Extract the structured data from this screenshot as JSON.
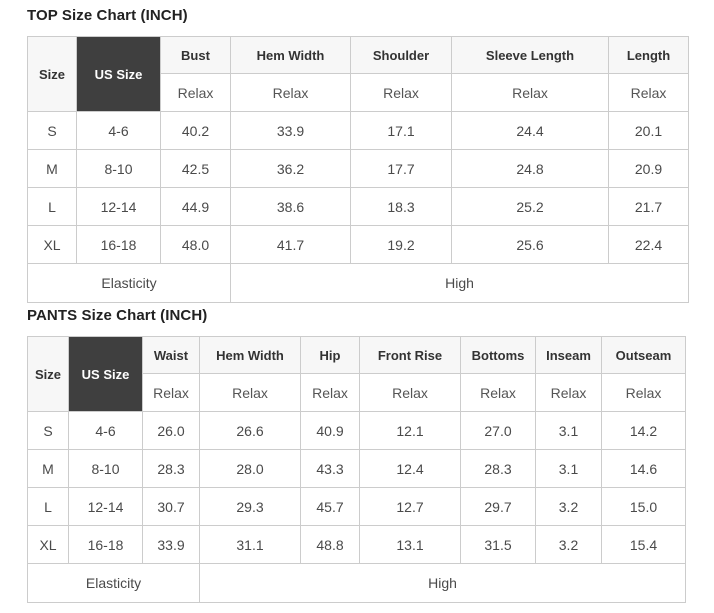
{
  "colors": {
    "dark_header_bg": "#3f3f3f",
    "dark_header_text": "#ffffff",
    "light_header_bg": "#f7f7f7",
    "border": "#cccccc",
    "body_text": "#4a4a4a",
    "title_text": "#222222"
  },
  "top_chart": {
    "title": "TOP Size Chart (INCH)",
    "size_header": "Size",
    "us_size_header": "US Size",
    "columns": [
      "Bust",
      "Hem Width",
      "Shoulder",
      "Sleeve Length",
      "Length"
    ],
    "fit_labels": [
      "Relax",
      "Relax",
      "Relax",
      "Relax",
      "Relax"
    ],
    "rows": [
      {
        "size": "S",
        "us_size": "4-6",
        "values": [
          "40.2",
          "33.9",
          "17.1",
          "24.4",
          "20.1"
        ]
      },
      {
        "size": "M",
        "us_size": "8-10",
        "values": [
          "42.5",
          "36.2",
          "17.7",
          "24.8",
          "20.9"
        ]
      },
      {
        "size": "L",
        "us_size": "12-14",
        "values": [
          "44.9",
          "38.6",
          "18.3",
          "25.2",
          "21.7"
        ]
      },
      {
        "size": "XL",
        "us_size": "16-18",
        "values": [
          "48.0",
          "41.7",
          "19.2",
          "25.6",
          "22.4"
        ]
      }
    ],
    "footer": {
      "label": "Elasticity",
      "value": "High"
    }
  },
  "pants_chart": {
    "title": "PANTS Size Chart (INCH)",
    "size_header": "Size",
    "us_size_header": "US Size",
    "columns": [
      "Waist",
      "Hem Width",
      "Hip",
      "Front Rise",
      "Bottoms",
      "Inseam",
      "Outseam"
    ],
    "fit_labels": [
      "Relax",
      "Relax",
      "Relax",
      "Relax",
      "Relax",
      "Relax",
      "Relax"
    ],
    "rows": [
      {
        "size": "S",
        "us_size": "4-6",
        "values": [
          "26.0",
          "26.6",
          "40.9",
          "12.1",
          "27.0",
          "3.1",
          "14.2"
        ]
      },
      {
        "size": "M",
        "us_size": "8-10",
        "values": [
          "28.3",
          "28.0",
          "43.3",
          "12.4",
          "28.3",
          "3.1",
          "14.6"
        ]
      },
      {
        "size": "L",
        "us_size": "12-14",
        "values": [
          "30.7",
          "29.3",
          "45.7",
          "12.7",
          "29.7",
          "3.2",
          "15.0"
        ]
      },
      {
        "size": "XL",
        "us_size": "16-18",
        "values": [
          "33.9",
          "31.1",
          "48.8",
          "13.1",
          "31.5",
          "3.2",
          "15.4"
        ]
      }
    ],
    "footer": {
      "label": "Elasticity",
      "value": "High"
    }
  }
}
